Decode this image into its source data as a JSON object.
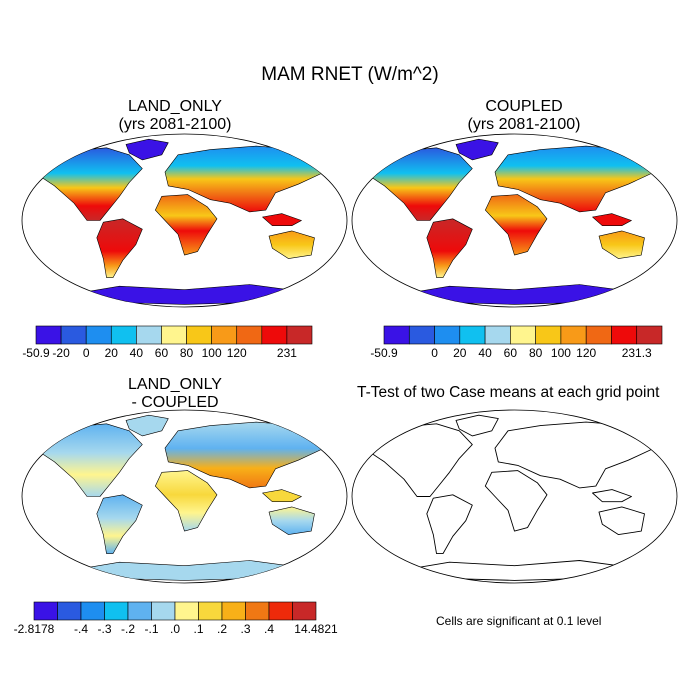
{
  "page_title": "MAM RNET (W/m^2)",
  "chart_data": [
    {
      "type": "heatmap",
      "id": "land_only",
      "title": "LAND_ONLY",
      "subtitle": "(yrs 2081-2100)",
      "colorbar": {
        "colors": [
          "#3a12e6",
          "#2a5ae0",
          "#1e8ef0",
          "#10c0f0",
          "#a6d8ee",
          "#fff58e",
          "#f8c718",
          "#f89a18",
          "#f06814",
          "#ee0a0a",
          "#c82828"
        ],
        "labels": [
          "-50.9",
          "-20",
          "0",
          "20",
          "40",
          "60",
          "80",
          "100",
          "120",
          "",
          "231"
        ]
      }
    },
    {
      "type": "heatmap",
      "id": "coupled",
      "title": "COUPLED",
      "subtitle": "(yrs 2081-2100)",
      "colorbar": {
        "colors": [
          "#3a12e6",
          "#2a5ae0",
          "#1e8ef0",
          "#10c0f0",
          "#a6d8ee",
          "#fff58e",
          "#f8c718",
          "#f89a18",
          "#f06814",
          "#ee0a0a",
          "#c82828"
        ],
        "labels": [
          "-50.9",
          "",
          "0",
          "20",
          "40",
          "60",
          "80",
          "100",
          "120",
          "",
          "231.3"
        ]
      }
    },
    {
      "type": "heatmap",
      "id": "difference",
      "title": "LAND_ONLY",
      "subtitle": "- COUPLED",
      "colorbar": {
        "colors": [
          "#3a12e6",
          "#2a5ae0",
          "#1e8ef0",
          "#10c0f0",
          "#5fb2f0",
          "#a6d8ee",
          "#fff58e",
          "#f8d83c",
          "#f8b018",
          "#f07814",
          "#ee2a0a",
          "#c82828"
        ],
        "labels": [
          "-2.8178",
          "",
          "-.4",
          "-.3",
          "-.2",
          "-.1",
          ".0",
          ".1",
          ".2",
          ".3",
          ".4",
          "",
          "14.4821"
        ]
      }
    },
    {
      "type": "heatmap",
      "id": "ttest",
      "title": "T-Test of two Case means at each grid point",
      "note": "Cells are significant at 0.1 level"
    }
  ]
}
